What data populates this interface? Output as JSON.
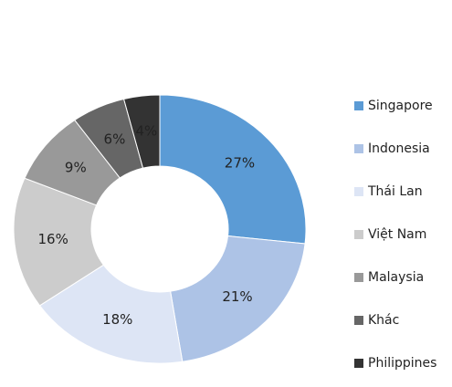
{
  "chart_data": {
    "type": "donut",
    "categories": [
      "Singapore",
      "Indonesia",
      "Thái Lan",
      "Việt Nam",
      "Malaysia",
      "Khác",
      "Philippines"
    ],
    "values": [
      27,
      21,
      18,
      16,
      9,
      6,
      4
    ],
    "value_labels": [
      "27%",
      "21%",
      "18%",
      "16%",
      "9%",
      "6%",
      "4%"
    ],
    "colors": [
      "#5b9bd5",
      "#adc3e6",
      "#dde5f5",
      "#cccccc",
      "#999999",
      "#666666",
      "#333333"
    ],
    "legend": "right"
  }
}
